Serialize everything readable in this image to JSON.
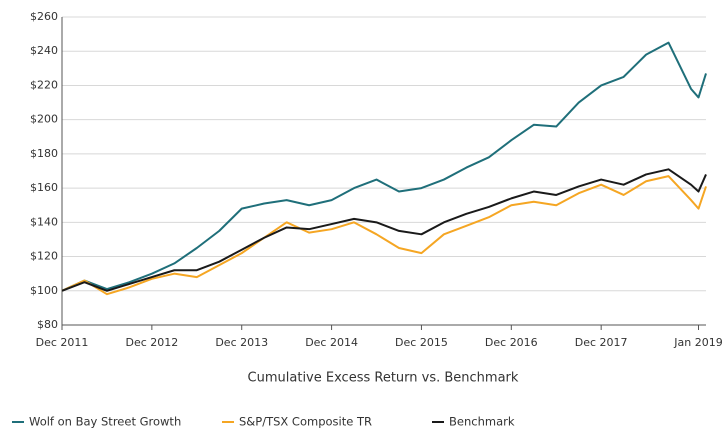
{
  "chart_data": {
    "type": "line",
    "title": "Cumulative Excess Return vs. Benchmark",
    "x": [
      "2011-12",
      "2012-03",
      "2012-06",
      "2012-09",
      "2012-12",
      "2013-03",
      "2013-06",
      "2013-09",
      "2013-12",
      "2014-03",
      "2014-06",
      "2014-09",
      "2014-12",
      "2015-03",
      "2015-06",
      "2015-09",
      "2015-12",
      "2016-03",
      "2016-06",
      "2016-09",
      "2016-12",
      "2017-03",
      "2017-06",
      "2017-09",
      "2017-12",
      "2018-03",
      "2018-06",
      "2018-09",
      "2018-12",
      "2019-01",
      "2019-02"
    ],
    "series": [
      {
        "name": "Wolf on Bay Street Growth",
        "color": "#1f6f7a",
        "values": [
          100,
          106,
          101,
          105,
          110,
          116,
          125,
          135,
          148,
          151,
          153,
          150,
          153,
          160,
          165,
          158,
          160,
          165,
          172,
          178,
          188,
          197,
          196,
          210,
          220,
          225,
          238,
          245,
          218,
          213,
          227
        ]
      },
      {
        "name": "S&P/TSX Composite TR",
        "color": "#f5a623",
        "values": [
          100,
          106,
          98,
          102,
          107,
          110,
          108,
          115,
          122,
          131,
          140,
          134,
          136,
          140,
          133,
          125,
          122,
          133,
          138,
          143,
          150,
          152,
          150,
          157,
          162,
          156,
          164,
          167,
          153,
          148,
          161
        ]
      },
      {
        "name": "Benchmark",
        "color": "#1a1a1a",
        "values": [
          100,
          105,
          100,
          104,
          108,
          112,
          112,
          117,
          124,
          131,
          137,
          136,
          139,
          142,
          140,
          135,
          133,
          140,
          145,
          149,
          154,
          158,
          156,
          161,
          165,
          162,
          168,
          171,
          162,
          158,
          168
        ]
      }
    ],
    "xlim": [
      "2011-12",
      "2019-02"
    ],
    "xticks": [
      {
        "value": "2011-12",
        "label": "Dec 2011"
      },
      {
        "value": "2012-12",
        "label": "Dec 2012"
      },
      {
        "value": "2013-12",
        "label": "Dec 2013"
      },
      {
        "value": "2014-12",
        "label": "Dec 2014"
      },
      {
        "value": "2015-12",
        "label": "Dec 2015"
      },
      {
        "value": "2016-12",
        "label": "Dec 2016"
      },
      {
        "value": "2017-12",
        "label": "Dec 2017"
      },
      {
        "value": "2019-01",
        "label": "Jan 2019"
      }
    ],
    "ylim": [
      80,
      260
    ],
    "yticks": [
      {
        "value": 80,
        "label": "$80"
      },
      {
        "value": 100,
        "label": "$100"
      },
      {
        "value": 120,
        "label": "$120"
      },
      {
        "value": 140,
        "label": "$140"
      },
      {
        "value": 160,
        "label": "$160"
      },
      {
        "value": 180,
        "label": "$180"
      },
      {
        "value": 200,
        "label": "$200"
      },
      {
        "value": 220,
        "label": "$220"
      },
      {
        "value": 240,
        "label": "$240"
      },
      {
        "value": 260,
        "label": "$260"
      }
    ],
    "grid": true
  }
}
